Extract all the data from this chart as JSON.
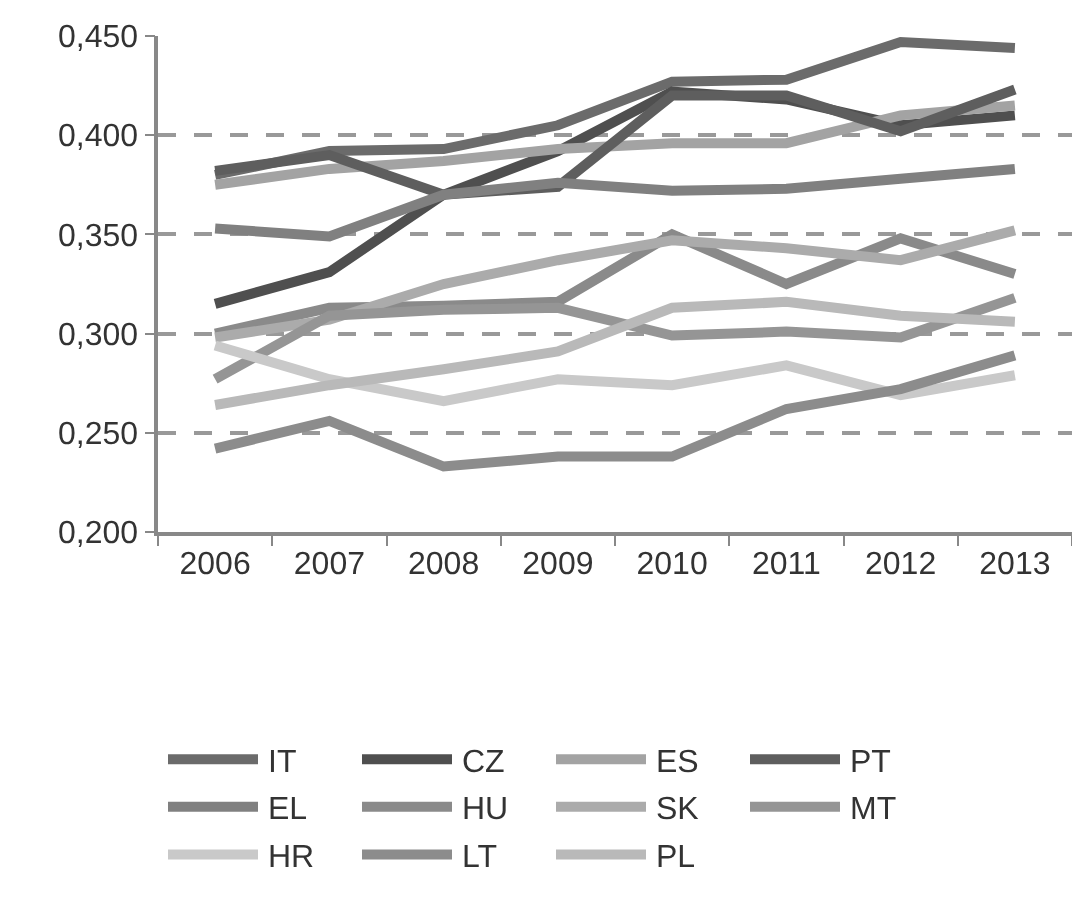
{
  "chart_data": {
    "type": "line",
    "categories": [
      "2006",
      "2007",
      "2008",
      "2009",
      "2010",
      "2011",
      "2012",
      "2013"
    ],
    "ylim": [
      0.2,
      0.45
    ],
    "yticks": [
      {
        "value": 0.2,
        "label": "0,200"
      },
      {
        "value": 0.25,
        "label": "0,250"
      },
      {
        "value": 0.3,
        "label": "0,300"
      },
      {
        "value": 0.35,
        "label": "0,350"
      },
      {
        "value": 0.4,
        "label": "0,400"
      },
      {
        "value": 0.45,
        "label": "0,450"
      }
    ],
    "grid": "y",
    "legend": "bottom",
    "line_style": "solid",
    "series": [
      {
        "name": "IT",
        "color": "#6b6b6b",
        "values": [
          0.38,
          0.392,
          0.393,
          0.405,
          0.427,
          0.428,
          0.447,
          0.444
        ]
      },
      {
        "name": "CZ",
        "color": "#4f4f4f",
        "values": [
          0.315,
          0.331,
          0.37,
          0.392,
          0.422,
          0.418,
          0.405,
          0.41
        ]
      },
      {
        "name": "ES",
        "color": "#a3a3a3",
        "values": [
          0.375,
          0.383,
          0.387,
          0.393,
          0.396,
          0.396,
          0.41,
          0.415
        ]
      },
      {
        "name": "PT",
        "color": "#5e5e5e",
        "values": [
          0.382,
          0.39,
          0.37,
          0.374,
          0.42,
          0.42,
          0.402,
          0.423
        ]
      },
      {
        "name": "EL",
        "color": "#808080",
        "values": [
          0.353,
          0.349,
          0.37,
          0.376,
          0.372,
          0.373,
          0.378,
          0.383
        ]
      },
      {
        "name": "HU",
        "color": "#8a8a8a",
        "values": [
          0.3,
          0.313,
          0.314,
          0.316,
          0.35,
          0.325,
          0.348,
          0.33
        ]
      },
      {
        "name": "SK",
        "color": "#ababab",
        "values": [
          0.298,
          0.307,
          0.325,
          0.337,
          0.347,
          0.343,
          0.337,
          0.352
        ]
      },
      {
        "name": "MT",
        "color": "#959595",
        "values": [
          0.277,
          0.309,
          0.312,
          0.313,
          0.299,
          0.301,
          0.298,
          0.318
        ]
      },
      {
        "name": "HR",
        "color": "#c9c9c9",
        "values": [
          0.294,
          0.277,
          0.266,
          0.277,
          0.274,
          0.284,
          0.269,
          0.279
        ]
      },
      {
        "name": "LT",
        "color": "#8c8c8c",
        "values": [
          0.242,
          0.256,
          0.233,
          0.238,
          0.238,
          0.262,
          0.272,
          0.289
        ]
      },
      {
        "name": "PL",
        "color": "#b9b9b9",
        "values": [
          0.264,
          0.274,
          0.282,
          0.291,
          0.313,
          0.316,
          0.309,
          0.306
        ]
      }
    ]
  }
}
